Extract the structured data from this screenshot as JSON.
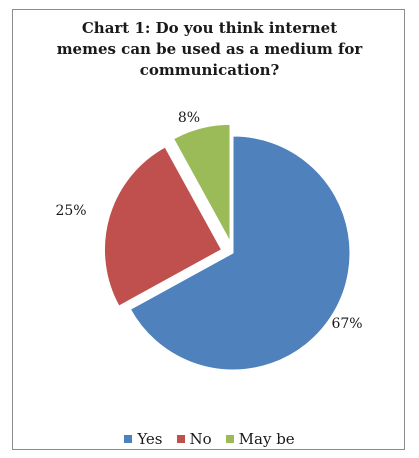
{
  "chart_data": {
    "type": "pie",
    "title_lines": [
      "Chart 1: Do you think internet",
      "memes can be used as a medium for",
      "communication?"
    ],
    "categories": [
      "Yes",
      "No",
      "May be"
    ],
    "values": [
      67,
      25,
      8
    ],
    "labels": [
      "67%",
      "25%",
      "8%"
    ],
    "colors": [
      "#4f81bd",
      "#c0504d",
      "#9bbb59"
    ],
    "exploded": true,
    "legend_position": "bottom"
  }
}
